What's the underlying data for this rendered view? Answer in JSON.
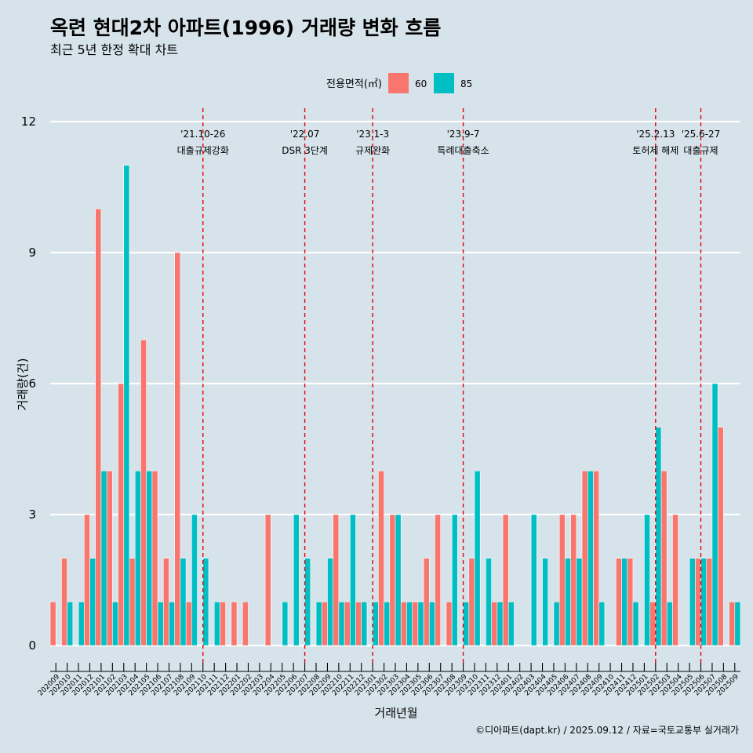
{
  "chart_data": {
    "type": "bar",
    "title": "옥련 현대2차 아파트(1996) 거래량 변화 흐름",
    "subtitle": "최근 5년 한정 확대 차트",
    "xlabel": "거래년월",
    "ylabel": "거래량(건)",
    "ylim": [
      0,
      12
    ],
    "yticks": [
      0,
      3,
      6,
      9,
      12
    ],
    "legend_title": "전용면적(㎡)",
    "caption": "©디아파트(dapt.kr) / 2025.09.12 / 자료=국토교통부 실거래가",
    "colors": {
      "60": "#f8766d",
      "85": "#00bfc4"
    },
    "categories": [
      "202009",
      "202010",
      "202011",
      "202012",
      "202101",
      "202102",
      "202103",
      "202104",
      "202105",
      "202106",
      "202107",
      "202108",
      "202109",
      "202110",
      "202111",
      "202112",
      "202201",
      "202202",
      "202203",
      "202204",
      "202205",
      "202206",
      "202207",
      "202208",
      "202209",
      "202210",
      "202211",
      "202212",
      "202301",
      "202302",
      "202303",
      "202304",
      "202305",
      "202306",
      "202307",
      "202308",
      "202309",
      "202310",
      "202311",
      "202312",
      "202401",
      "202402",
      "202403",
      "202404",
      "202405",
      "202406",
      "202407",
      "202408",
      "202409",
      "202410",
      "202411",
      "202412",
      "202501",
      "202502",
      "202503",
      "202504",
      "202505",
      "202506",
      "202507",
      "202508",
      "202509"
    ],
    "series": [
      {
        "name": "60",
        "values": [
          1,
          2,
          0,
          3,
          10,
          4,
          6,
          2,
          7,
          4,
          2,
          9,
          1,
          0,
          0,
          1,
          1,
          1,
          0,
          3,
          0,
          0,
          0,
          0,
          1,
          3,
          1,
          1,
          0,
          4,
          3,
          1,
          1,
          2,
          3,
          1,
          0,
          2,
          0,
          1,
          3,
          0,
          0,
          0,
          0,
          3,
          3,
          4,
          4,
          0,
          2,
          2,
          0,
          1,
          4,
          3,
          0,
          2,
          2,
          5,
          1
        ]
      },
      {
        "name": "85",
        "values": [
          0,
          1,
          1,
          2,
          4,
          1,
          11,
          4,
          4,
          1,
          1,
          2,
          3,
          2,
          1,
          0,
          0,
          0,
          0,
          0,
          1,
          3,
          2,
          1,
          2,
          1,
          3,
          1,
          1,
          1,
          3,
          1,
          1,
          1,
          0,
          3,
          1,
          4,
          2,
          1,
          1,
          0,
          3,
          2,
          1,
          2,
          2,
          4,
          1,
          0,
          2,
          1,
          3,
          5,
          1,
          0,
          2,
          2,
          6,
          0,
          1
        ]
      }
    ],
    "events": [
      {
        "date": "'21.10-26",
        "label": "대출규제강화",
        "index": 13
      },
      {
        "date": "'22.07",
        "label": "DSR 3단계",
        "index": 22
      },
      {
        "date": "'23.1-3",
        "label": "규제완화",
        "index": 28
      },
      {
        "date": "'23.9-7",
        "label": "특례대출축소",
        "index": 36
      },
      {
        "date": "'25.2.13",
        "label": "토허제 해제",
        "index": 53
      },
      {
        "date": "'25.6-27",
        "label": "대출규제",
        "index": 57
      }
    ]
  }
}
